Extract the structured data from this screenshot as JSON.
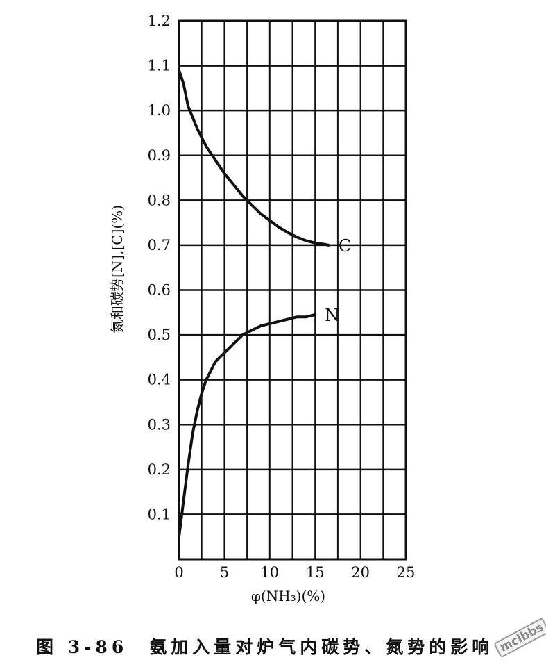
{
  "chart_data": {
    "type": "line",
    "xlabel": "φ(NH₃)(%)",
    "ylabel": "氮和碳势[N],[C](%)",
    "xlim": [
      0,
      25
    ],
    "ylim": [
      0,
      1.2
    ],
    "x_ticks": [
      "0",
      "5",
      "10",
      "15",
      "20",
      "25"
    ],
    "y_ticks": [
      "0.1",
      "0.2",
      "0.3",
      "0.4",
      "0.5",
      "0.6",
      "0.7",
      "0.8",
      "0.9",
      "1.0",
      "1.1",
      "1.2"
    ],
    "grid": true,
    "series": [
      {
        "name": "C",
        "x": [
          0,
          0.5,
          1,
          2,
          3,
          4,
          5,
          6,
          7,
          8,
          9,
          10,
          11,
          12,
          13,
          14,
          15,
          16,
          16.5
        ],
        "y": [
          1.09,
          1.06,
          1.01,
          0.96,
          0.92,
          0.89,
          0.86,
          0.835,
          0.81,
          0.79,
          0.77,
          0.755,
          0.74,
          0.728,
          0.718,
          0.71,
          0.705,
          0.702,
          0.7
        ],
        "color": "#111111"
      },
      {
        "name": "N",
        "x": [
          0,
          0.5,
          1,
          1.5,
          2,
          2.5,
          3,
          3.5,
          4,
          5,
          6,
          7,
          8,
          9,
          10,
          11,
          12,
          13,
          14,
          15
        ],
        "y": [
          0.05,
          0.13,
          0.21,
          0.28,
          0.33,
          0.37,
          0.4,
          0.42,
          0.44,
          0.46,
          0.48,
          0.5,
          0.51,
          0.52,
          0.525,
          0.53,
          0.535,
          0.54,
          0.54,
          0.545
        ],
        "color": "#111111"
      }
    ]
  },
  "caption": "图 3-86　氨加入量对炉气内碳势、氮势的影响",
  "watermark": "mclbbs"
}
